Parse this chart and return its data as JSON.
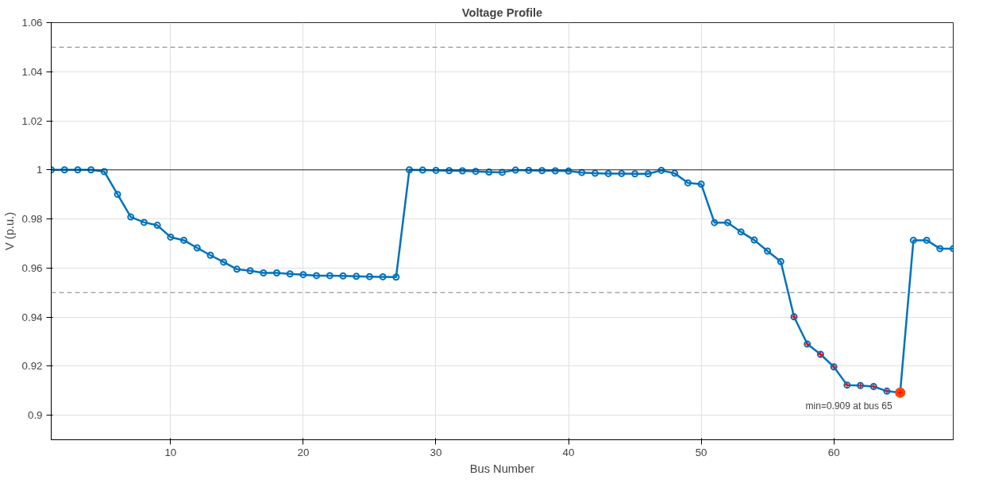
{
  "chart_data": {
    "type": "line",
    "title": "Voltage Profile",
    "xlabel": "Bus Number",
    "ylabel": "V (p.u.)",
    "xlim": [
      1,
      69
    ],
    "xticks": [
      10,
      20,
      30,
      40,
      50,
      60
    ],
    "ylim": [
      0.89,
      1.06
    ],
    "yticks": [
      0.9,
      0.92,
      0.94,
      0.96,
      0.98,
      1,
      1.02,
      1.04,
      1.06
    ],
    "grid": true,
    "marker": "circle",
    "line_style": "solid",
    "series": [
      {
        "color": "#0072bd",
        "x": [
          1,
          2,
          3,
          4,
          5,
          6,
          7,
          8,
          9,
          10,
          11,
          12,
          13,
          14,
          15,
          16,
          17,
          18,
          19,
          20,
          21,
          22,
          23,
          24,
          25,
          26,
          27,
          28,
          29,
          30,
          31,
          32,
          33,
          34,
          35,
          36,
          37,
          38,
          39,
          40,
          41,
          42,
          43,
          44,
          45,
          46,
          47,
          48,
          49,
          50,
          51,
          52,
          53,
          54,
          55,
          56,
          57,
          58,
          59,
          60,
          61,
          62,
          63,
          64,
          65,
          66,
          67,
          68,
          69
        ],
        "values": [
          1.0,
          1.0,
          1.0,
          1.0,
          0.9993,
          0.99,
          0.9808,
          0.9786,
          0.9774,
          0.9726,
          0.9713,
          0.9682,
          0.9652,
          0.9624,
          0.9595,
          0.9589,
          0.958,
          0.958,
          0.9576,
          0.9573,
          0.9569,
          0.9569,
          0.9568,
          0.9566,
          0.9565,
          0.9564,
          0.9563,
          1.0,
          0.9999,
          0.9998,
          0.9997,
          0.9996,
          0.9994,
          0.9991,
          0.999,
          0.9999,
          0.9998,
          0.9997,
          0.9996,
          0.9995,
          0.9989,
          0.9986,
          0.9985,
          0.9985,
          0.9984,
          0.9984,
          0.9998,
          0.9986,
          0.9947,
          0.9942,
          0.9785,
          0.9785,
          0.9747,
          0.9714,
          0.9669,
          0.9626,
          0.9401,
          0.929,
          0.9248,
          0.9197,
          0.9123,
          0.9121,
          0.9117,
          0.9098,
          0.9092,
          0.9713,
          0.9713,
          0.9679,
          0.9679
        ]
      },
      {
        "type": "scatter",
        "marker": "circle",
        "color": "#ff4500",
        "x": [
          65
        ],
        "values": [
          0.9092
        ]
      },
      {
        "type": "scatter",
        "marker": "cross",
        "color": "#ff0000",
        "x": [
          57,
          58,
          59,
          60,
          61,
          62,
          63,
          64,
          65
        ],
        "values": [
          0.9401,
          0.929,
          0.9248,
          0.9197,
          0.9123,
          0.9121,
          0.9117,
          0.9098,
          0.9092
        ]
      }
    ],
    "ref_lines": [
      {
        "axis": "y",
        "value": 1.05,
        "color": "#808080",
        "line_style": "dashed"
      },
      {
        "axis": "y",
        "value": 0.95,
        "color": "#808080",
        "line_style": "dashed"
      },
      {
        "axis": "y",
        "value": 1.0,
        "color": "#262626",
        "line_style": "solid"
      }
    ],
    "annotations": [
      {
        "text": "min=0.909 at bus 65",
        "x": 65,
        "y": 0.9092
      }
    ]
  }
}
